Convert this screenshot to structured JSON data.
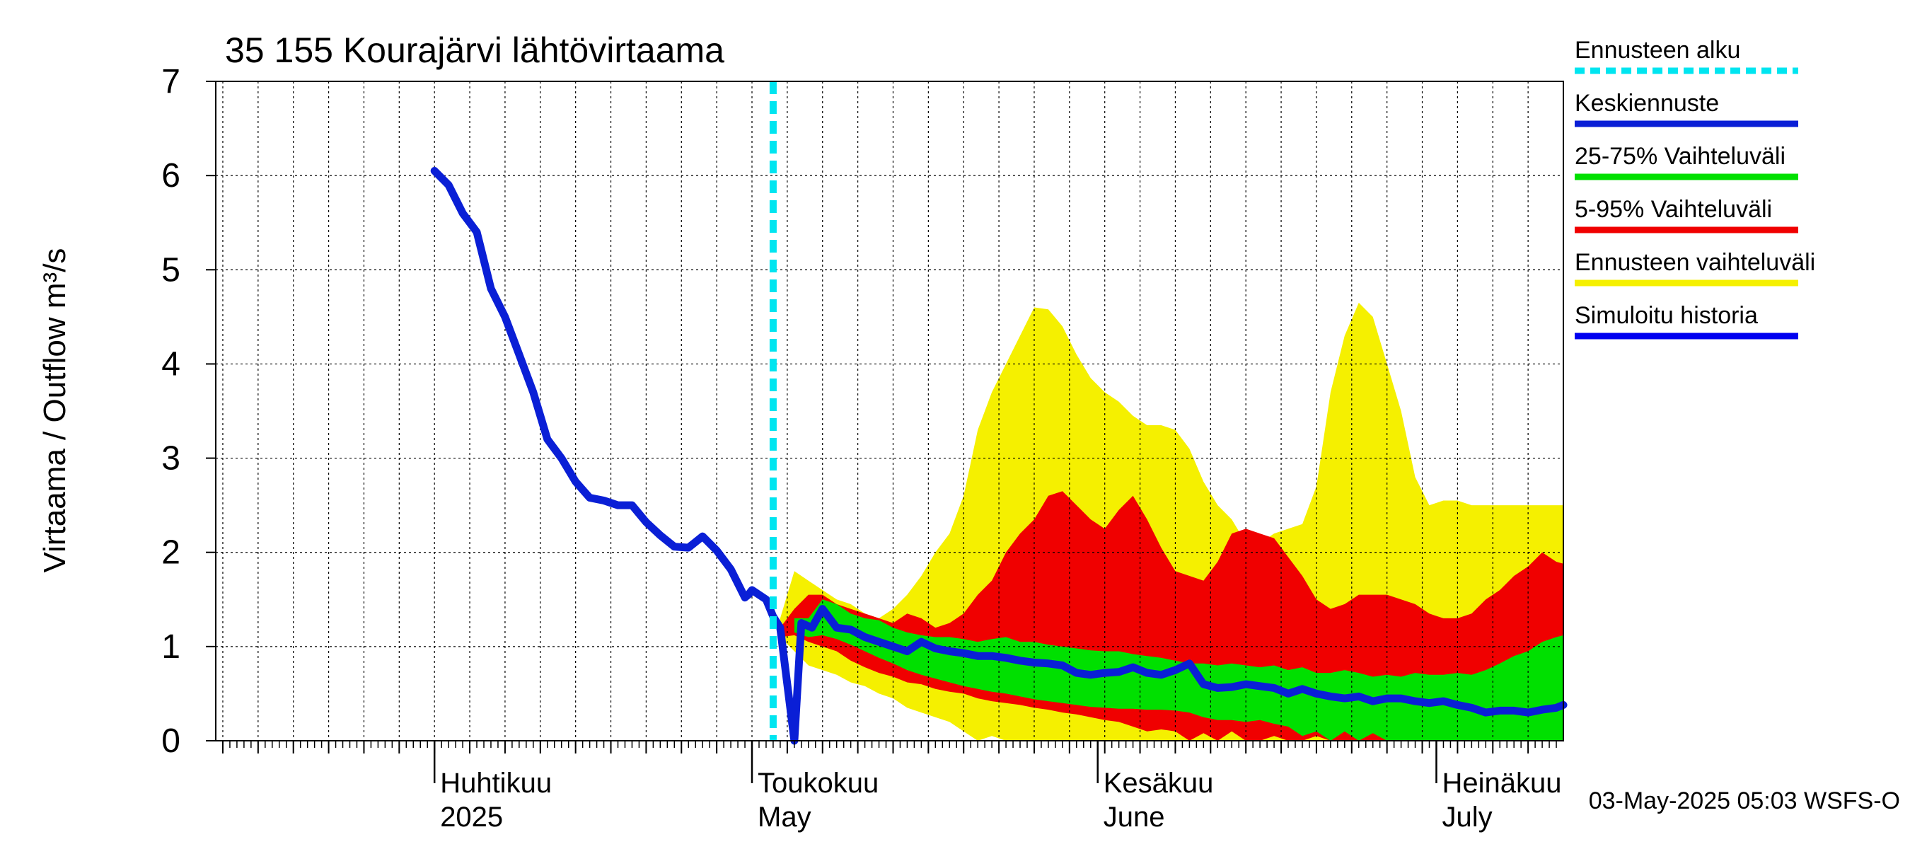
{
  "chart_data": {
    "type": "area",
    "title": "35 155 Kourajärvi lähtövirtaama",
    "ylabel": "Virtaama / Outflow    m³/s",
    "ylim": [
      0,
      7
    ],
    "yticks": [
      "0",
      "1",
      "2",
      "3",
      "4",
      "5",
      "6",
      "7"
    ],
    "x_range_days": [
      -31,
      160
    ],
    "x_start_date": "2025-04-01",
    "month_labels": [
      {
        "fi": "Huhtikuu",
        "en": "2025",
        "day": 0
      },
      {
        "fi": "Toukokuu",
        "en": "May",
        "day": 45
      },
      {
        "fi": "Kesäkuu",
        "en": "June",
        "day": 94
      },
      {
        "fi": "Heinäkuu",
        "en": "July",
        "day": 142
      }
    ],
    "month_boundaries": [
      0,
      45,
      94,
      142,
      190
    ],
    "forecast_start_day": 48,
    "legend": [
      {
        "label": "Ennusteen alku",
        "color": "#00e5f0",
        "style": "dashed"
      },
      {
        "label": "Keskiennuste",
        "color": "#0a1fd6",
        "style": "solid"
      },
      {
        "label": "25-75% Vaihteluväli",
        "color": "#00e000",
        "style": "solid"
      },
      {
        "label": "5-95% Vaihteluväli",
        "color": "#f00000",
        "style": "solid"
      },
      {
        "label": "Ennusteen vaihteluväli",
        "color": "#f5f000",
        "style": "solid"
      },
      {
        "label": "Simuloitu historia",
        "color": "#0000f0",
        "style": "solid"
      }
    ],
    "footer": "03-May-2025 05:03 WSFS-O",
    "series": {
      "history": {
        "x": [
          0,
          2,
          4,
          6,
          8,
          10,
          12,
          14,
          16,
          18,
          20,
          22,
          24,
          26,
          28,
          30,
          32,
          34,
          36,
          38,
          40,
          42,
          44,
          44.5,
          45,
          47,
          48,
          49
        ],
        "y": [
          6.05,
          5.9,
          5.6,
          5.4,
          4.8,
          4.5,
          4.1,
          3.7,
          3.2,
          3.0,
          2.75,
          2.58,
          2.55,
          2.5,
          2.5,
          2.32,
          2.18,
          2.06,
          2.05,
          2.17,
          2.02,
          1.82,
          1.52,
          1.55,
          1.6,
          1.5,
          1.32,
          1.2
        ]
      },
      "mean": {
        "x": [
          49,
          51,
          52,
          53.5,
          55,
          57,
          59,
          61,
          63,
          65,
          67,
          69,
          71,
          73,
          75,
          77,
          79,
          81,
          83,
          85,
          87,
          89,
          91,
          93,
          95,
          97,
          99,
          101,
          103,
          105,
          107,
          109,
          111,
          113,
          115,
          117,
          119,
          121,
          123,
          125,
          127,
          129,
          131,
          133,
          135,
          137,
          139,
          141,
          143,
          145,
          147,
          149,
          151,
          153,
          155,
          157,
          159,
          160
        ],
        "y": [
          1.2,
          0.0,
          1.25,
          1.2,
          1.4,
          1.2,
          1.18,
          1.1,
          1.05,
          1.0,
          0.95,
          1.05,
          0.98,
          0.95,
          0.93,
          0.9,
          0.9,
          0.88,
          0.85,
          0.83,
          0.82,
          0.8,
          0.72,
          0.7,
          0.72,
          0.73,
          0.78,
          0.72,
          0.7,
          0.75,
          0.82,
          0.6,
          0.56,
          0.57,
          0.6,
          0.58,
          0.56,
          0.5,
          0.55,
          0.5,
          0.47,
          0.45,
          0.47,
          0.42,
          0.45,
          0.45,
          0.42,
          0.4,
          0.42,
          0.38,
          0.35,
          0.3,
          0.32,
          0.32,
          0.3,
          0.33,
          0.35,
          0.38
        ]
      },
      "range_25_75": {
        "x": [
          51,
          53,
          55,
          57,
          59,
          61,
          63,
          65,
          67,
          69,
          71,
          73,
          75,
          77,
          79,
          81,
          83,
          85,
          87,
          89,
          91,
          93,
          95,
          97,
          99,
          101,
          103,
          105,
          107,
          109,
          111,
          113,
          115,
          117,
          119,
          121,
          123,
          125,
          127,
          129,
          131,
          133,
          135,
          137,
          139,
          141,
          143,
          145,
          147,
          149,
          151,
          153,
          155,
          157,
          159,
          160
        ],
        "low": [
          1.15,
          1.1,
          1.12,
          1.08,
          1.02,
          0.95,
          0.88,
          0.82,
          0.75,
          0.7,
          0.66,
          0.62,
          0.58,
          0.55,
          0.52,
          0.5,
          0.47,
          0.44,
          0.42,
          0.4,
          0.38,
          0.36,
          0.35,
          0.34,
          0.34,
          0.33,
          0.33,
          0.32,
          0.3,
          0.25,
          0.22,
          0.22,
          0.2,
          0.22,
          0.18,
          0.15,
          0.05,
          0.1,
          0.0,
          0.1,
          0.0,
          0.08,
          0.0,
          0.0,
          0.0,
          0.0,
          0.0,
          0.0,
          0.0,
          0.0,
          0.0,
          0.0,
          0.0,
          0.0,
          0.0,
          0.0
        ],
        "high": [
          1.3,
          1.3,
          1.5,
          1.45,
          1.35,
          1.3,
          1.28,
          1.2,
          1.15,
          1.12,
          1.1,
          1.1,
          1.08,
          1.05,
          1.08,
          1.1,
          1.05,
          1.05,
          1.02,
          1.0,
          0.98,
          0.96,
          0.95,
          0.95,
          0.92,
          0.9,
          0.88,
          0.85,
          0.82,
          0.82,
          0.8,
          0.82,
          0.8,
          0.78,
          0.8,
          0.75,
          0.78,
          0.72,
          0.72,
          0.75,
          0.72,
          0.68,
          0.7,
          0.68,
          0.72,
          0.7,
          0.7,
          0.72,
          0.7,
          0.75,
          0.82,
          0.9,
          0.95,
          1.05,
          1.1,
          1.12
        ]
      },
      "range_5_95": {
        "x": [
          49,
          51,
          53,
          55,
          57,
          59,
          61,
          63,
          65,
          67,
          69,
          71,
          73,
          75,
          77,
          79,
          81,
          83,
          85,
          87,
          89,
          91,
          93,
          95,
          97,
          99,
          101,
          103,
          105,
          107,
          109,
          111,
          113,
          115,
          117,
          119,
          121,
          123,
          125,
          127,
          129,
          131,
          133,
          135,
          137,
          139,
          141,
          143,
          145,
          147,
          149,
          151,
          153,
          155,
          157,
          159,
          160
        ],
        "low": [
          1.1,
          1.12,
          1.05,
          1.0,
          0.95,
          0.85,
          0.78,
          0.72,
          0.68,
          0.62,
          0.6,
          0.55,
          0.52,
          0.5,
          0.45,
          0.42,
          0.4,
          0.38,
          0.35,
          0.33,
          0.3,
          0.28,
          0.25,
          0.22,
          0.2,
          0.15,
          0.1,
          0.12,
          0.1,
          0.0,
          0.08,
          0.0,
          0.1,
          0.0,
          0.0,
          0.05,
          0.0,
          0.0,
          0.05,
          0.0,
          0.0,
          0.0,
          0.0,
          0.0,
          0.0,
          0.0,
          0.0,
          0.0,
          0.0,
          0.0,
          0.0,
          0.0,
          0.0,
          0.0,
          0.0,
          0.0,
          0.0
        ],
        "high": [
          1.2,
          1.4,
          1.55,
          1.55,
          1.45,
          1.4,
          1.35,
          1.3,
          1.25,
          1.35,
          1.3,
          1.2,
          1.25,
          1.35,
          1.55,
          1.7,
          2.0,
          2.2,
          2.35,
          2.6,
          2.65,
          2.5,
          2.35,
          2.25,
          2.45,
          2.6,
          2.35,
          2.05,
          1.8,
          1.75,
          1.7,
          1.9,
          2.2,
          2.25,
          2.2,
          2.15,
          1.95,
          1.75,
          1.5,
          1.4,
          1.45,
          1.55,
          1.55,
          1.55,
          1.5,
          1.45,
          1.35,
          1.3,
          1.3,
          1.35,
          1.5,
          1.6,
          1.75,
          1.85,
          2.0,
          1.9,
          1.88
        ]
      },
      "range_full": {
        "x": [
          49,
          51,
          53,
          55,
          57,
          59,
          61,
          63,
          65,
          67,
          69,
          71,
          73,
          75,
          77,
          79,
          81,
          83,
          85,
          87,
          89,
          91,
          93,
          95,
          97,
          99,
          101,
          103,
          105,
          107,
          109,
          111,
          113,
          115,
          117,
          119,
          121,
          123,
          125,
          127,
          129,
          131,
          133,
          135,
          137,
          139,
          141,
          143,
          145,
          147,
          149,
          151,
          153,
          155,
          157,
          159,
          160
        ],
        "low": [
          1.1,
          0.95,
          0.8,
          0.75,
          0.7,
          0.62,
          0.58,
          0.5,
          0.45,
          0.35,
          0.3,
          0.25,
          0.2,
          0.1,
          0.0,
          0.05,
          0.0,
          0.0,
          0.0,
          0.0,
          0.0,
          0.0,
          0.0,
          0.0,
          0.0,
          0.0,
          0.0,
          0.0,
          0.0,
          0.0,
          0.0,
          0.0,
          0.0,
          0.0,
          0.0,
          0.0,
          0.0,
          0.0,
          0.0,
          0.0,
          0.0,
          0.0,
          0.0,
          0.0,
          0.0,
          0.0,
          0.0,
          0.0,
          0.0,
          0.0,
          0.0,
          0.0,
          0.0,
          0.0,
          0.0,
          0.0,
          0.0
        ],
        "high": [
          1.3,
          1.8,
          1.7,
          1.6,
          1.5,
          1.45,
          1.35,
          1.3,
          1.4,
          1.55,
          1.75,
          2.0,
          2.2,
          2.6,
          3.3,
          3.7,
          4.0,
          4.3,
          4.6,
          4.58,
          4.4,
          4.1,
          3.85,
          3.7,
          3.6,
          3.45,
          3.35,
          3.35,
          3.3,
          3.1,
          2.75,
          2.5,
          2.35,
          2.1,
          2.1,
          2.2,
          2.25,
          2.3,
          2.7,
          3.7,
          4.3,
          4.65,
          4.5,
          4.0,
          3.5,
          2.8,
          2.5,
          2.55,
          2.55,
          2.5,
          2.5,
          2.5,
          2.5,
          2.5,
          2.5,
          2.5,
          2.5
        ]
      }
    }
  }
}
